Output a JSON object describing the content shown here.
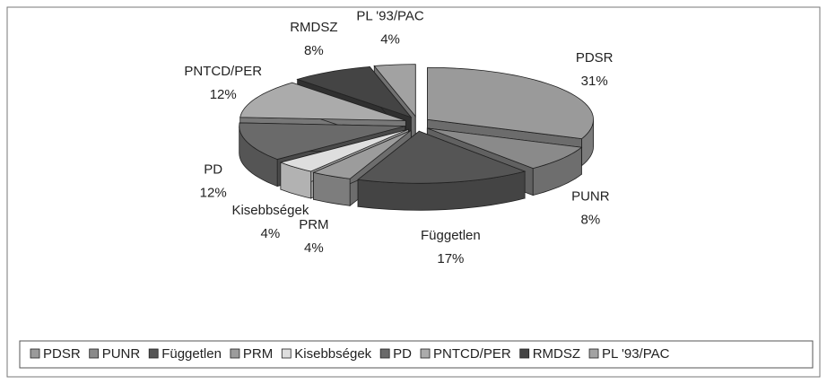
{
  "chart_data": {
    "type": "pie3d",
    "categories": [
      "PDSR",
      "PUNR",
      "Független",
      "PRM",
      "Kisebbségek",
      "PD",
      "PNTCD/PER",
      "RMDSZ",
      "PL '93/PAC"
    ],
    "values": [
      31,
      8,
      17,
      4,
      4,
      12,
      12,
      8,
      4
    ],
    "value_labels": [
      "31%",
      "8%",
      "17%",
      "4%",
      "4%",
      "12%",
      "12%",
      "8%",
      "4%"
    ],
    "colors": [
      "#9a9a9a",
      "#8a8a8a",
      "#555555",
      "#9c9c9c",
      "#dedede",
      "#6a6a6a",
      "#ababab",
      "#444444",
      "#a2a2a2"
    ],
    "legend": "bottom"
  }
}
